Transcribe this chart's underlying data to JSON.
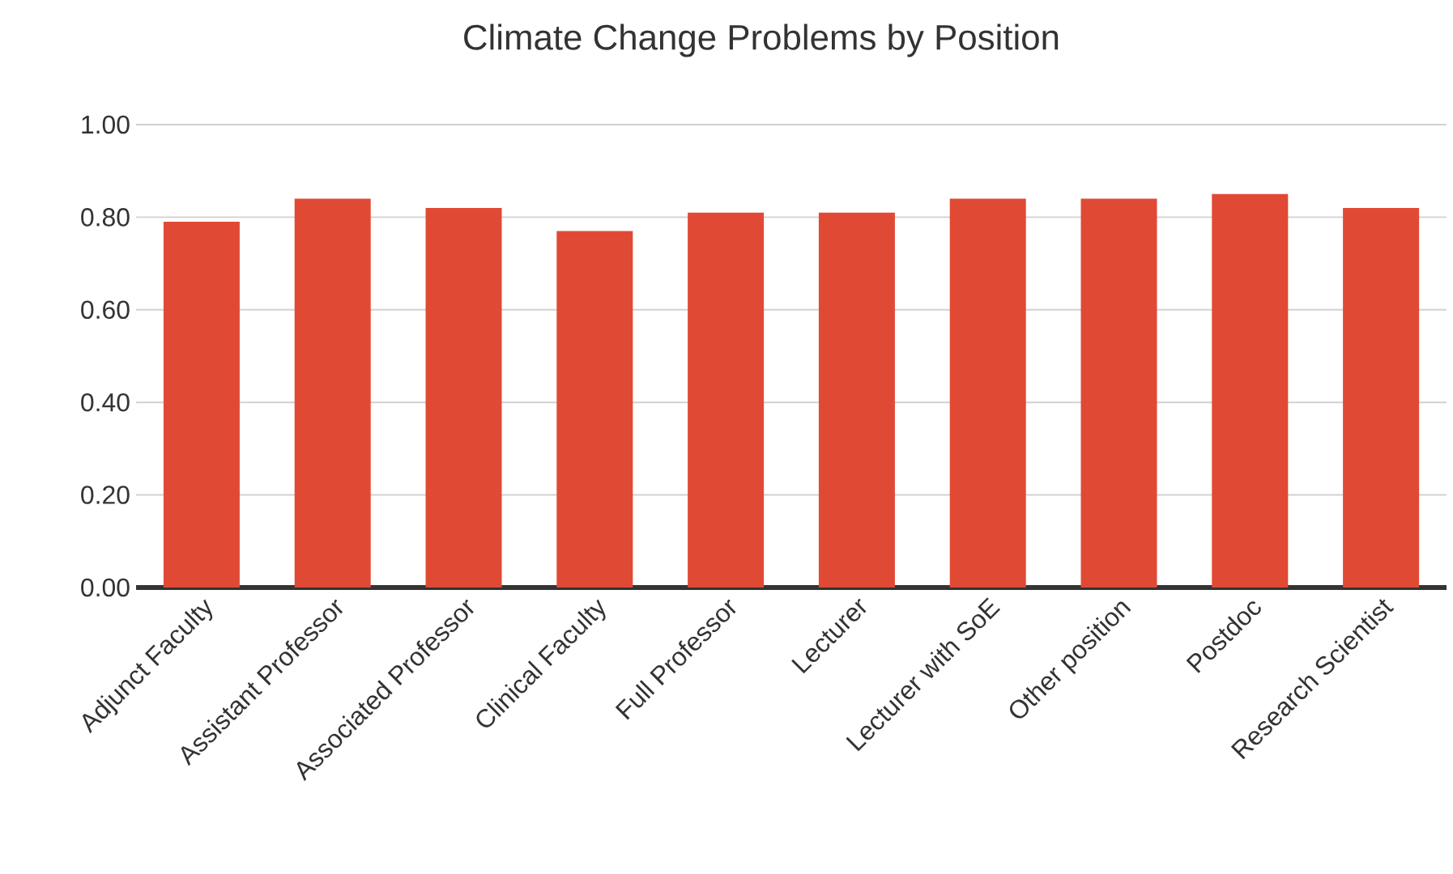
{
  "chart_data": {
    "type": "bar",
    "title": "Climate Change Problems by Position",
    "categories": [
      "Adjunct Faculty",
      "Assistant Professor",
      "Associated Professor",
      "Clinical Faculty",
      "Full Professor",
      "Lecturer",
      "Lecturer with SoE",
      "Other position",
      "Postdoc",
      "Research Scientist"
    ],
    "values": [
      0.79,
      0.84,
      0.82,
      0.77,
      0.81,
      0.81,
      0.84,
      0.84,
      0.85,
      0.82
    ],
    "color": "#e04a35",
    "ylim": [
      0,
      1
    ],
    "yticks": [
      {
        "value": 0,
        "label": "0.00"
      },
      {
        "value": 0.2,
        "label": "0.20"
      },
      {
        "value": 0.4,
        "label": "0.40"
      },
      {
        "value": 0.6,
        "label": "0.60"
      },
      {
        "value": 0.8,
        "label": "0.80"
      },
      {
        "value": 1,
        "label": "1.00"
      }
    ],
    "grid": "y"
  }
}
